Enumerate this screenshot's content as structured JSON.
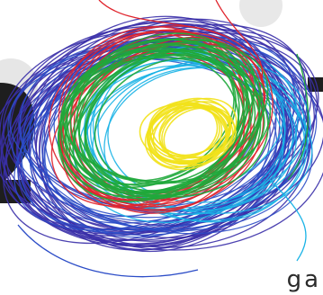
{
  "caption": "ga",
  "scribble": {
    "loops": 26,
    "colors": {
      "purple": "#3a2fa8",
      "blue": "#2b4cc7",
      "red": "#e0242c",
      "green": "#1fa83b",
      "cyan": "#1ab3e6",
      "yellow": "#f2e21b"
    },
    "background_glyph": "#1e1e1e",
    "background_blob": "#e6e6e6"
  }
}
